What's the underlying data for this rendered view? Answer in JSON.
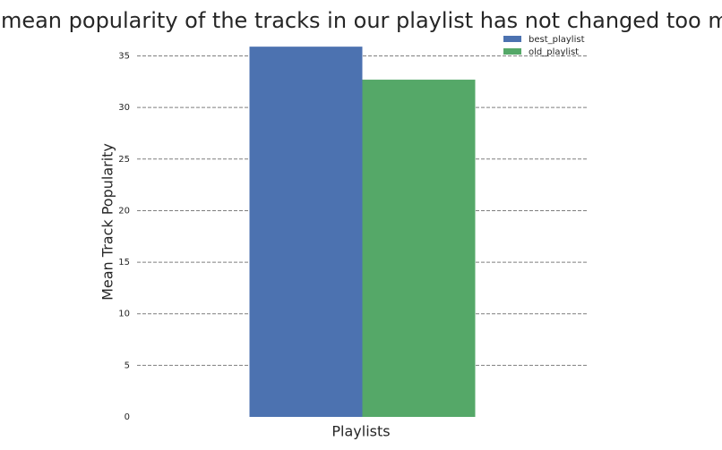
{
  "chart_data": {
    "type": "bar",
    "title": "The mean popularity of the tracks in our playlist has not changed too much",
    "xlabel": "Playlists",
    "ylabel": "Mean Track Popularity",
    "categories": [
      ""
    ],
    "series": [
      {
        "name": "best_playlist",
        "values": [
          35.9
        ],
        "color": "#4C72B0"
      },
      {
        "name": "old_playlist",
        "values": [
          32.7
        ],
        "color": "#55A868"
      }
    ],
    "ylim": [
      0,
      36
    ],
    "yticks": [
      "0",
      "5",
      "10",
      "15",
      "20",
      "25",
      "30",
      "35"
    ],
    "grid": "horizontal dashed",
    "legend_position": "top-right"
  }
}
